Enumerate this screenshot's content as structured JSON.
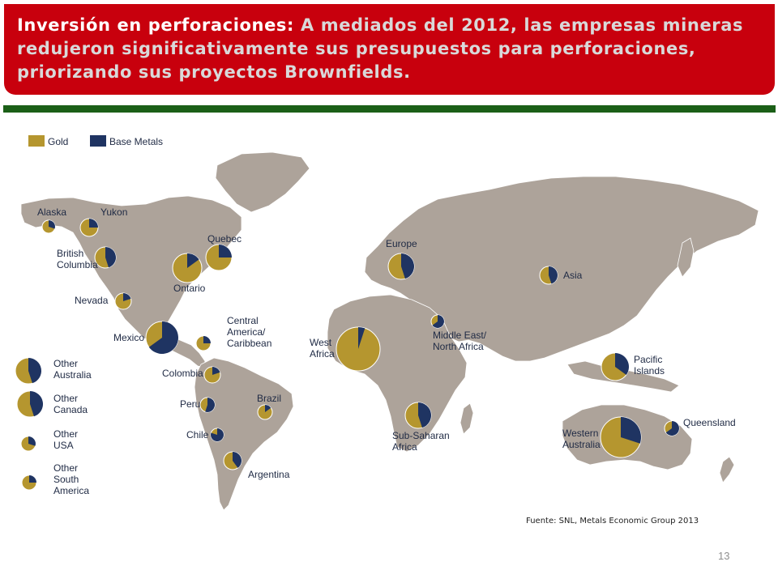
{
  "header": {
    "title_lead": "Inversión en perforaciones:",
    "title_rest": " A mediados del 2012, las empresas mineras redujeron significativamente sus presupuestos para perforaciones, priorizando sus proyectos Brownfields."
  },
  "colors": {
    "header_bg": "#c8000d",
    "rule": "#1b5f17",
    "land": "#ada39a",
    "gold": "#b5962f",
    "base_metals": "#1f3462"
  },
  "legend": {
    "gold": "Gold",
    "base_metals": "Base Metals"
  },
  "chart_data": {
    "type": "pie",
    "series_names": [
      "Gold",
      "Base Metals"
    ],
    "regions": [
      {
        "label": [
          "Alaska"
        ],
        "gold_share": 0.7
      },
      {
        "label": [
          "Yukon"
        ],
        "gold_share": 0.75
      },
      {
        "label": [
          "British",
          "Columbia"
        ],
        "gold_share": 0.55
      },
      {
        "label": [
          "Ontario"
        ],
        "gold_share": 0.85
      },
      {
        "label": [
          "Quebec"
        ],
        "gold_share": 0.75
      },
      {
        "label": [
          "Nevada"
        ],
        "gold_share": 0.8
      },
      {
        "label": [
          "Mexico"
        ],
        "gold_share": 0.35
      },
      {
        "label": [
          "Central",
          "America/",
          "Caribbean"
        ],
        "gold_share": 0.75
      },
      {
        "label": [
          "Colombia"
        ],
        "gold_share": 0.8
      },
      {
        "label": [
          "Peru"
        ],
        "gold_share": 0.45
      },
      {
        "label": [
          "Chile"
        ],
        "gold_share": 0.2
      },
      {
        "label": [
          "Brazil"
        ],
        "gold_share": 0.85
      },
      {
        "label": [
          "Argentina"
        ],
        "gold_share": 0.6
      },
      {
        "label": [
          "Europe"
        ],
        "gold_share": 0.55
      },
      {
        "label": [
          "Asia"
        ],
        "gold_share": 0.55
      },
      {
        "label": [
          "West",
          "Africa"
        ],
        "gold_share": 0.95
      },
      {
        "label": [
          "Middle East/",
          "North Africa"
        ],
        "gold_share": 0.35
      },
      {
        "label": [
          "Sub-Saharan",
          "Africa"
        ],
        "gold_share": 0.55
      },
      {
        "label": [
          "Pacific",
          "Islands"
        ],
        "gold_share": 0.65
      },
      {
        "label": [
          "Western",
          "Australia"
        ],
        "gold_share": 0.7
      },
      {
        "label": [
          "Queensland"
        ],
        "gold_share": 0.35
      },
      {
        "label": [
          "Other",
          "Australia"
        ],
        "gold_share": 0.55
      },
      {
        "label": [
          "Other",
          "Canada"
        ],
        "gold_share": 0.55
      },
      {
        "label": [
          "Other",
          "USA"
        ],
        "gold_share": 0.7
      },
      {
        "label": [
          "Other",
          "South",
          "America"
        ],
        "gold_share": 0.75
      }
    ]
  },
  "source": "Fuente: SNL, Metals Economic Group 2013",
  "page_number": "13"
}
